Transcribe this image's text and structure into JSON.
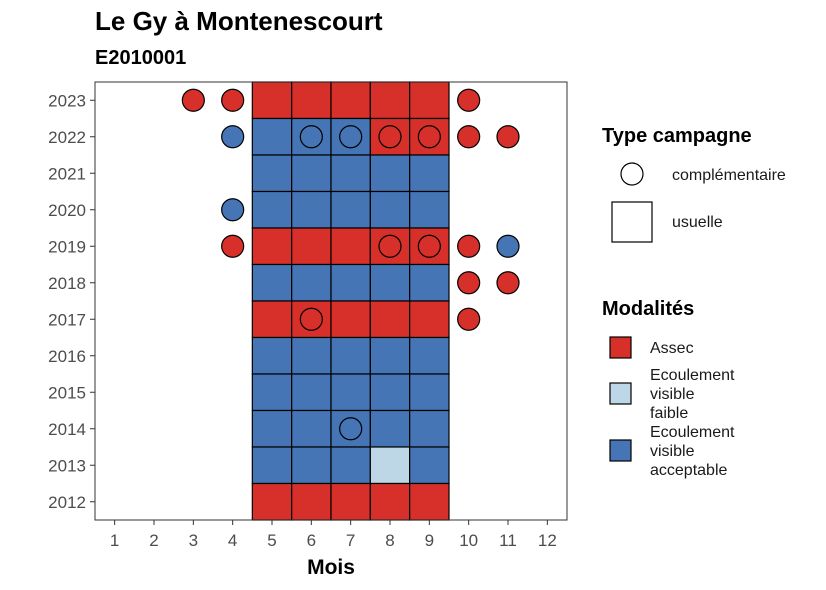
{
  "chart_data": {
    "type": "heatmap",
    "title": "Le Gy à Montenescourt",
    "subtitle": "E2010001",
    "xlabel": "Mois",
    "ylabel": "",
    "x_ticks": [
      1,
      2,
      3,
      4,
      5,
      6,
      7,
      8,
      9,
      10,
      11,
      12
    ],
    "y_ticks": [
      2023,
      2022,
      2021,
      2020,
      2019,
      2018,
      2017,
      2016,
      2015,
      2014,
      2013,
      2012
    ],
    "xlim": [
      0.5,
      12.5
    ],
    "ylim": [
      2011.5,
      2023.5
    ],
    "grid": false,
    "colors": {
      "Assec": "#d7302a",
      "Ecoulement visible faible": "#bdd7e7",
      "Ecoulement visible acceptable": "#4575b4"
    },
    "usuelle": [
      {
        "year": 2023,
        "month": 5,
        "modalite": "Assec"
      },
      {
        "year": 2023,
        "month": 6,
        "modalite": "Assec"
      },
      {
        "year": 2023,
        "month": 7,
        "modalite": "Assec"
      },
      {
        "year": 2023,
        "month": 8,
        "modalite": "Assec"
      },
      {
        "year": 2023,
        "month": 9,
        "modalite": "Assec"
      },
      {
        "year": 2022,
        "month": 5,
        "modalite": "Ecoulement visible acceptable"
      },
      {
        "year": 2022,
        "month": 6,
        "modalite": "Ecoulement visible acceptable"
      },
      {
        "year": 2022,
        "month": 7,
        "modalite": "Ecoulement visible acceptable"
      },
      {
        "year": 2022,
        "month": 8,
        "modalite": "Assec"
      },
      {
        "year": 2022,
        "month": 9,
        "modalite": "Assec"
      },
      {
        "year": 2021,
        "month": 5,
        "modalite": "Ecoulement visible acceptable"
      },
      {
        "year": 2021,
        "month": 6,
        "modalite": "Ecoulement visible acceptable"
      },
      {
        "year": 2021,
        "month": 7,
        "modalite": "Ecoulement visible acceptable"
      },
      {
        "year": 2021,
        "month": 8,
        "modalite": "Ecoulement visible acceptable"
      },
      {
        "year": 2021,
        "month": 9,
        "modalite": "Ecoulement visible acceptable"
      },
      {
        "year": 2020,
        "month": 5,
        "modalite": "Ecoulement visible acceptable"
      },
      {
        "year": 2020,
        "month": 6,
        "modalite": "Ecoulement visible acceptable"
      },
      {
        "year": 2020,
        "month": 7,
        "modalite": "Ecoulement visible acceptable"
      },
      {
        "year": 2020,
        "month": 8,
        "modalite": "Ecoulement visible acceptable"
      },
      {
        "year": 2020,
        "month": 9,
        "modalite": "Ecoulement visible acceptable"
      },
      {
        "year": 2019,
        "month": 5,
        "modalite": "Assec"
      },
      {
        "year": 2019,
        "month": 6,
        "modalite": "Assec"
      },
      {
        "year": 2019,
        "month": 7,
        "modalite": "Assec"
      },
      {
        "year": 2019,
        "month": 8,
        "modalite": "Assec"
      },
      {
        "year": 2019,
        "month": 9,
        "modalite": "Assec"
      },
      {
        "year": 2018,
        "month": 5,
        "modalite": "Ecoulement visible acceptable"
      },
      {
        "year": 2018,
        "month": 6,
        "modalite": "Ecoulement visible acceptable"
      },
      {
        "year": 2018,
        "month": 7,
        "modalite": "Ecoulement visible acceptable"
      },
      {
        "year": 2018,
        "month": 8,
        "modalite": "Ecoulement visible acceptable"
      },
      {
        "year": 2018,
        "month": 9,
        "modalite": "Ecoulement visible acceptable"
      },
      {
        "year": 2017,
        "month": 5,
        "modalite": "Assec"
      },
      {
        "year": 2017,
        "month": 6,
        "modalite": "Assec"
      },
      {
        "year": 2017,
        "month": 7,
        "modalite": "Assec"
      },
      {
        "year": 2017,
        "month": 8,
        "modalite": "Assec"
      },
      {
        "year": 2017,
        "month": 9,
        "modalite": "Assec"
      },
      {
        "year": 2016,
        "month": 5,
        "modalite": "Ecoulement visible acceptable"
      },
      {
        "year": 2016,
        "month": 6,
        "modalite": "Ecoulement visible acceptable"
      },
      {
        "year": 2016,
        "month": 7,
        "modalite": "Ecoulement visible acceptable"
      },
      {
        "year": 2016,
        "month": 8,
        "modalite": "Ecoulement visible acceptable"
      },
      {
        "year": 2016,
        "month": 9,
        "modalite": "Ecoulement visible acceptable"
      },
      {
        "year": 2015,
        "month": 5,
        "modalite": "Ecoulement visible acceptable"
      },
      {
        "year": 2015,
        "month": 6,
        "modalite": "Ecoulement visible acceptable"
      },
      {
        "year": 2015,
        "month": 7,
        "modalite": "Ecoulement visible acceptable"
      },
      {
        "year": 2015,
        "month": 8,
        "modalite": "Ecoulement visible acceptable"
      },
      {
        "year": 2015,
        "month": 9,
        "modalite": "Ecoulement visible acceptable"
      },
      {
        "year": 2014,
        "month": 5,
        "modalite": "Ecoulement visible acceptable"
      },
      {
        "year": 2014,
        "month": 6,
        "modalite": "Ecoulement visible acceptable"
      },
      {
        "year": 2014,
        "month": 7,
        "modalite": "Ecoulement visible acceptable"
      },
      {
        "year": 2014,
        "month": 8,
        "modalite": "Ecoulement visible acceptable"
      },
      {
        "year": 2014,
        "month": 9,
        "modalite": "Ecoulement visible acceptable"
      },
      {
        "year": 2013,
        "month": 5,
        "modalite": "Ecoulement visible acceptable"
      },
      {
        "year": 2013,
        "month": 6,
        "modalite": "Ecoulement visible acceptable"
      },
      {
        "year": 2013,
        "month": 7,
        "modalite": "Ecoulement visible acceptable"
      },
      {
        "year": 2013,
        "month": 8,
        "modalite": "Ecoulement visible faible"
      },
      {
        "year": 2013,
        "month": 9,
        "modalite": "Ecoulement visible acceptable"
      },
      {
        "year": 2012,
        "month": 5,
        "modalite": "Assec"
      },
      {
        "year": 2012,
        "month": 6,
        "modalite": "Assec"
      },
      {
        "year": 2012,
        "month": 7,
        "modalite": "Assec"
      },
      {
        "year": 2012,
        "month": 8,
        "modalite": "Assec"
      },
      {
        "year": 2012,
        "month": 9,
        "modalite": "Assec"
      }
    ],
    "complementaire": [
      {
        "year": 2023,
        "month": 3,
        "modalite": "Assec"
      },
      {
        "year": 2023,
        "month": 4,
        "modalite": "Assec"
      },
      {
        "year": 2023,
        "month": 10,
        "modalite": "Assec"
      },
      {
        "year": 2022,
        "month": 4,
        "modalite": "Ecoulement visible acceptable"
      },
      {
        "year": 2022,
        "month": 6,
        "modalite": "Ecoulement visible acceptable"
      },
      {
        "year": 2022,
        "month": 7,
        "modalite": "Ecoulement visible acceptable"
      },
      {
        "year": 2022,
        "month": 8,
        "modalite": "Assec"
      },
      {
        "year": 2022,
        "month": 9,
        "modalite": "Assec"
      },
      {
        "year": 2022,
        "month": 10,
        "modalite": "Assec"
      },
      {
        "year": 2022,
        "month": 11,
        "modalite": "Assec"
      },
      {
        "year": 2020,
        "month": 4,
        "modalite": "Ecoulement visible acceptable"
      },
      {
        "year": 2019,
        "month": 4,
        "modalite": "Assec"
      },
      {
        "year": 2019,
        "month": 8,
        "modalite": "Assec"
      },
      {
        "year": 2019,
        "month": 9,
        "modalite": "Assec"
      },
      {
        "year": 2019,
        "month": 10,
        "modalite": "Assec"
      },
      {
        "year": 2019,
        "month": 11,
        "modalite": "Ecoulement visible acceptable"
      },
      {
        "year": 2018,
        "month": 10,
        "modalite": "Assec"
      },
      {
        "year": 2018,
        "month": 11,
        "modalite": "Assec"
      },
      {
        "year": 2017,
        "month": 6,
        "modalite": "Assec"
      },
      {
        "year": 2017,
        "month": 10,
        "modalite": "Assec"
      },
      {
        "year": 2014,
        "month": 7,
        "modalite": "Ecoulement visible acceptable"
      }
    ],
    "legend": {
      "type_title": "Type campagne",
      "type_entries": [
        "complémentaire",
        "usuelle"
      ],
      "modalites_title": "Modalités",
      "modalites_entries": [
        {
          "key": "Assec",
          "lines": [
            "Assec"
          ]
        },
        {
          "key": "Ecoulement visible faible",
          "lines": [
            "Ecoulement",
            "visible",
            "faible"
          ]
        },
        {
          "key": "Ecoulement visible acceptable",
          "lines": [
            "Ecoulement",
            "visible",
            "acceptable"
          ]
        }
      ],
      "placement": "right"
    }
  }
}
